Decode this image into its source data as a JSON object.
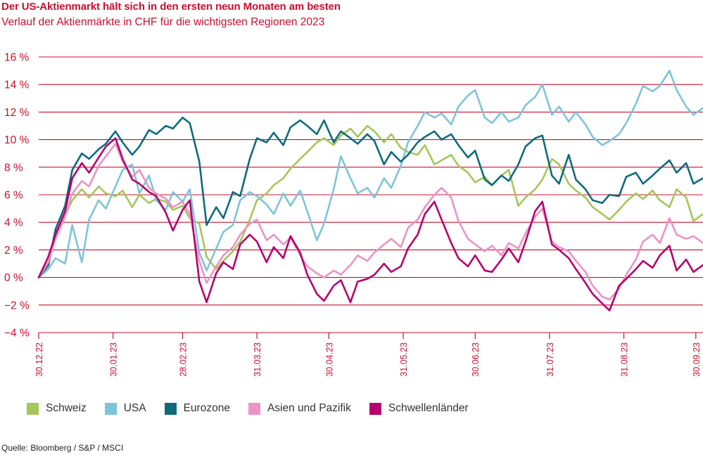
{
  "chart_data": {
    "type": "line",
    "title": "Der US-Aktienmarkt hält sich in den ersten neun Monaten am besten",
    "subtitle": "Verlauf der Aktienmärkte in CHF für die wichtigsten Regionen 2023",
    "ylim": [
      -4,
      16
    ],
    "yticks": [
      -4,
      -2,
      0,
      2,
      4,
      6,
      8,
      10,
      12,
      14,
      16
    ],
    "ytick_labels": [
      "−4 %",
      "−2 %",
      "0 %",
      "2 %",
      "4 %",
      "6 %",
      "8 %",
      "10 %",
      "12 %",
      "14 %",
      "16 %"
    ],
    "xlim": [
      "2022-12-30",
      "2023-10-03"
    ],
    "xticks": [
      "2022-12-30",
      "2023-01-30",
      "2023-02-28",
      "2023-03-31",
      "2023-04-30",
      "2023-05-31",
      "2023-06-30",
      "2023-07-31",
      "2023-08-31",
      "2023-09-30"
    ],
    "xtick_labels": [
      "30.12.22",
      "30.01.23",
      "28.02.23",
      "31.03.23",
      "30.04.23",
      "31.05.23",
      "30.06.23",
      "31.07.23",
      "31.08.23",
      "30.09.23"
    ],
    "grid": "horizontal",
    "legend_position": "bottom",
    "series": [
      {
        "name": "Schweiz",
        "color": "#a4c65a",
        "x": [
          "2022-12-30",
          "2023-01-03",
          "2023-01-06",
          "2023-01-10",
          "2023-01-13",
          "2023-01-17",
          "2023-01-20",
          "2023-01-24",
          "2023-01-27",
          "2023-01-31",
          "2023-02-03",
          "2023-02-07",
          "2023-02-10",
          "2023-02-14",
          "2023-02-17",
          "2023-02-21",
          "2023-02-24",
          "2023-02-28",
          "2023-03-03",
          "2023-03-07",
          "2023-03-10",
          "2023-03-14",
          "2023-03-17",
          "2023-03-21",
          "2023-03-24",
          "2023-03-28",
          "2023-03-31",
          "2023-04-04",
          "2023-04-07",
          "2023-04-11",
          "2023-04-14",
          "2023-04-18",
          "2023-04-21",
          "2023-04-25",
          "2023-04-28",
          "2023-05-02",
          "2023-05-05",
          "2023-05-09",
          "2023-05-12",
          "2023-05-16",
          "2023-05-19",
          "2023-05-23",
          "2023-05-26",
          "2023-05-30",
          "2023-06-02",
          "2023-06-06",
          "2023-06-09",
          "2023-06-13",
          "2023-06-16",
          "2023-06-20",
          "2023-06-23",
          "2023-06-27",
          "2023-06-30",
          "2023-07-04",
          "2023-07-07",
          "2023-07-11",
          "2023-07-14",
          "2023-07-18",
          "2023-07-21",
          "2023-07-25",
          "2023-07-28",
          "2023-08-01",
          "2023-08-04",
          "2023-08-08",
          "2023-08-11",
          "2023-08-15",
          "2023-08-18",
          "2023-08-22",
          "2023-08-25",
          "2023-08-29",
          "2023-09-01",
          "2023-09-05",
          "2023-09-08",
          "2023-09-12",
          "2023-09-15",
          "2023-09-19",
          "2023-09-22",
          "2023-09-26",
          "2023-09-29",
          "2023-10-03"
        ],
        "y": [
          0.0,
          0.8,
          3.2,
          4.5,
          5.6,
          6.4,
          5.8,
          6.6,
          6.1,
          5.9,
          6.3,
          5.1,
          6.0,
          5.4,
          5.7,
          5.5,
          4.9,
          5.2,
          4.3,
          3.9,
          1.5,
          0.6,
          1.2,
          1.9,
          2.6,
          4.2,
          5.6,
          6.1,
          6.7,
          7.2,
          7.9,
          8.6,
          9.1,
          9.8,
          10.1,
          9.6,
          10.3,
          10.8,
          10.2,
          11.0,
          10.6,
          9.8,
          10.4,
          9.4,
          9.1,
          8.9,
          9.6,
          8.2,
          8.5,
          8.9,
          8.1,
          7.6,
          6.9,
          7.3,
          6.7,
          7.4,
          7.8,
          5.2,
          5.8,
          6.4,
          7.1,
          8.6,
          8.2,
          6.8,
          6.3,
          5.8,
          5.1,
          4.6,
          4.2,
          4.9,
          5.5,
          6.1,
          5.7,
          6.3,
          5.6,
          5.1,
          6.4,
          5.8,
          4.1,
          4.6
        ]
      },
      {
        "name": "USA",
        "color": "#7ec4d8",
        "x": [
          "2022-12-30",
          "2023-01-03",
          "2023-01-06",
          "2023-01-10",
          "2023-01-13",
          "2023-01-17",
          "2023-01-20",
          "2023-01-24",
          "2023-01-27",
          "2023-01-31",
          "2023-02-03",
          "2023-02-07",
          "2023-02-10",
          "2023-02-14",
          "2023-02-17",
          "2023-02-21",
          "2023-02-24",
          "2023-02-28",
          "2023-03-03",
          "2023-03-07",
          "2023-03-10",
          "2023-03-14",
          "2023-03-17",
          "2023-03-21",
          "2023-03-24",
          "2023-03-28",
          "2023-03-31",
          "2023-04-04",
          "2023-04-07",
          "2023-04-11",
          "2023-04-14",
          "2023-04-18",
          "2023-04-21",
          "2023-04-25",
          "2023-04-28",
          "2023-05-02",
          "2023-05-05",
          "2023-05-09",
          "2023-05-12",
          "2023-05-16",
          "2023-05-19",
          "2023-05-23",
          "2023-05-26",
          "2023-05-30",
          "2023-06-02",
          "2023-06-06",
          "2023-06-09",
          "2023-06-13",
          "2023-06-16",
          "2023-06-20",
          "2023-06-23",
          "2023-06-27",
          "2023-06-30",
          "2023-07-04",
          "2023-07-07",
          "2023-07-11",
          "2023-07-14",
          "2023-07-18",
          "2023-07-21",
          "2023-07-25",
          "2023-07-28",
          "2023-08-01",
          "2023-08-04",
          "2023-08-08",
          "2023-08-11",
          "2023-08-15",
          "2023-08-18",
          "2023-08-22",
          "2023-08-25",
          "2023-08-29",
          "2023-09-01",
          "2023-09-05",
          "2023-09-08",
          "2023-09-12",
          "2023-09-15",
          "2023-09-19",
          "2023-09-22",
          "2023-09-26",
          "2023-09-29",
          "2023-10-03"
        ],
        "y": [
          0.0,
          0.6,
          1.4,
          1.0,
          3.8,
          1.1,
          4.2,
          5.6,
          5.0,
          6.6,
          7.8,
          8.2,
          6.1,
          7.4,
          5.6,
          4.9,
          6.2,
          5.5,
          6.4,
          1.8,
          0.5,
          2.1,
          3.3,
          3.8,
          5.6,
          6.2,
          5.9,
          5.3,
          4.6,
          6.1,
          5.2,
          6.3,
          4.8,
          2.7,
          3.9,
          6.4,
          8.8,
          7.2,
          6.1,
          6.5,
          5.8,
          7.2,
          6.5,
          8.1,
          9.8,
          11.0,
          12.0,
          11.6,
          11.9,
          11.1,
          12.4,
          13.2,
          13.6,
          11.6,
          11.2,
          12.0,
          11.3,
          11.6,
          12.5,
          13.1,
          14.0,
          11.8,
          12.4,
          11.3,
          12.0,
          11.1,
          10.2,
          9.6,
          9.9,
          10.4,
          11.2,
          12.6,
          13.9,
          13.5,
          13.9,
          15.0,
          13.6,
          12.4,
          11.8,
          12.3
        ]
      },
      {
        "name": "Eurozone",
        "color": "#0e6b7c",
        "x": [
          "2022-12-30",
          "2023-01-03",
          "2023-01-06",
          "2023-01-10",
          "2023-01-13",
          "2023-01-17",
          "2023-01-20",
          "2023-01-24",
          "2023-01-27",
          "2023-01-31",
          "2023-02-03",
          "2023-02-07",
          "2023-02-10",
          "2023-02-14",
          "2023-02-17",
          "2023-02-21",
          "2023-02-24",
          "2023-02-28",
          "2023-03-03",
          "2023-03-07",
          "2023-03-10",
          "2023-03-14",
          "2023-03-17",
          "2023-03-21",
          "2023-03-24",
          "2023-03-28",
          "2023-03-31",
          "2023-04-04",
          "2023-04-07",
          "2023-04-11",
          "2023-04-14",
          "2023-04-18",
          "2023-04-21",
          "2023-04-25",
          "2023-04-28",
          "2023-05-02",
          "2023-05-05",
          "2023-05-09",
          "2023-05-12",
          "2023-05-16",
          "2023-05-19",
          "2023-05-23",
          "2023-05-26",
          "2023-05-30",
          "2023-06-02",
          "2023-06-06",
          "2023-06-09",
          "2023-06-13",
          "2023-06-16",
          "2023-06-20",
          "2023-06-23",
          "2023-06-27",
          "2023-06-30",
          "2023-07-04",
          "2023-07-07",
          "2023-07-11",
          "2023-07-14",
          "2023-07-18",
          "2023-07-21",
          "2023-07-25",
          "2023-07-28",
          "2023-08-01",
          "2023-08-04",
          "2023-08-08",
          "2023-08-11",
          "2023-08-15",
          "2023-08-18",
          "2023-08-22",
          "2023-08-25",
          "2023-08-29",
          "2023-09-01",
          "2023-09-05",
          "2023-09-08",
          "2023-09-12",
          "2023-09-15",
          "2023-09-19",
          "2023-09-22",
          "2023-09-26",
          "2023-09-29",
          "2023-10-03"
        ],
        "y": [
          0.0,
          0.9,
          3.5,
          5.2,
          7.8,
          9.0,
          8.6,
          9.3,
          9.7,
          10.6,
          9.8,
          8.9,
          9.5,
          10.7,
          10.4,
          11.0,
          10.8,
          11.6,
          11.2,
          8.4,
          3.8,
          5.1,
          4.3,
          6.2,
          5.9,
          8.6,
          10.1,
          9.8,
          10.5,
          9.6,
          10.9,
          11.4,
          11.0,
          10.4,
          11.4,
          9.8,
          10.6,
          10.1,
          9.7,
          10.4,
          9.9,
          8.2,
          9.1,
          8.4,
          8.9,
          9.8,
          10.2,
          10.6,
          10.0,
          10.4,
          9.6,
          8.7,
          9.2,
          7.1,
          6.7,
          7.4,
          7.0,
          8.2,
          9.5,
          10.1,
          10.3,
          7.4,
          6.8,
          8.9,
          7.1,
          6.4,
          5.6,
          5.4,
          6.0,
          5.9,
          7.3,
          7.6,
          6.8,
          7.4,
          7.9,
          8.5,
          7.6,
          8.3,
          6.8,
          7.2
        ]
      },
      {
        "name": "Asien und Pazifik",
        "color": "#ec93c4",
        "x": [
          "2022-12-30",
          "2023-01-03",
          "2023-01-06",
          "2023-01-10",
          "2023-01-13",
          "2023-01-17",
          "2023-01-20",
          "2023-01-24",
          "2023-01-27",
          "2023-01-31",
          "2023-02-03",
          "2023-02-07",
          "2023-02-10",
          "2023-02-14",
          "2023-02-17",
          "2023-02-21",
          "2023-02-24",
          "2023-02-28",
          "2023-03-03",
          "2023-03-07",
          "2023-03-10",
          "2023-03-14",
          "2023-03-17",
          "2023-03-21",
          "2023-03-24",
          "2023-03-28",
          "2023-03-31",
          "2023-04-04",
          "2023-04-07",
          "2023-04-11",
          "2023-04-14",
          "2023-04-18",
          "2023-04-21",
          "2023-04-25",
          "2023-04-28",
          "2023-05-02",
          "2023-05-05",
          "2023-05-09",
          "2023-05-12",
          "2023-05-16",
          "2023-05-19",
          "2023-05-23",
          "2023-05-26",
          "2023-05-30",
          "2023-06-02",
          "2023-06-06",
          "2023-06-09",
          "2023-06-13",
          "2023-06-16",
          "2023-06-20",
          "2023-06-23",
          "2023-06-27",
          "2023-06-30",
          "2023-07-04",
          "2023-07-07",
          "2023-07-11",
          "2023-07-14",
          "2023-07-18",
          "2023-07-21",
          "2023-07-25",
          "2023-07-28",
          "2023-08-01",
          "2023-08-04",
          "2023-08-08",
          "2023-08-11",
          "2023-08-15",
          "2023-08-18",
          "2023-08-22",
          "2023-08-25",
          "2023-08-29",
          "2023-09-01",
          "2023-09-05",
          "2023-09-08",
          "2023-09-12",
          "2023-09-15",
          "2023-09-19",
          "2023-09-22",
          "2023-09-26",
          "2023-09-29",
          "2023-10-03"
        ],
        "y": [
          0.0,
          1.1,
          2.8,
          4.4,
          6.1,
          7.0,
          6.6,
          8.1,
          8.8,
          9.7,
          8.4,
          7.3,
          7.8,
          6.5,
          6.1,
          5.7,
          5.1,
          5.5,
          4.6,
          1.2,
          -0.4,
          0.8,
          1.6,
          2.2,
          3.1,
          3.9,
          4.2,
          2.7,
          3.1,
          2.4,
          2.9,
          1.6,
          0.8,
          0.3,
          0.0,
          0.5,
          0.2,
          0.9,
          1.6,
          1.2,
          1.8,
          2.4,
          2.8,
          2.2,
          3.6,
          4.2,
          5.1,
          6.0,
          6.5,
          5.8,
          4.1,
          2.8,
          2.4,
          1.9,
          2.3,
          1.6,
          2.5,
          2.1,
          3.2,
          4.4,
          5.0,
          2.6,
          2.2,
          1.9,
          1.2,
          0.4,
          -0.6,
          -1.4,
          -1.6,
          -0.8,
          0.2,
          1.3,
          2.6,
          3.1,
          2.5,
          4.3,
          3.1,
          2.8,
          3.0,
          2.5
        ]
      },
      {
        "name": "Schwellenländer",
        "color": "#b5006e",
        "x": [
          "2022-12-30",
          "2023-01-03",
          "2023-01-06",
          "2023-01-10",
          "2023-01-13",
          "2023-01-17",
          "2023-01-20",
          "2023-01-24",
          "2023-01-27",
          "2023-01-31",
          "2023-02-03",
          "2023-02-07",
          "2023-02-10",
          "2023-02-14",
          "2023-02-17",
          "2023-02-21",
          "2023-02-24",
          "2023-02-28",
          "2023-03-03",
          "2023-03-07",
          "2023-03-10",
          "2023-03-14",
          "2023-03-17",
          "2023-03-21",
          "2023-03-24",
          "2023-03-28",
          "2023-03-31",
          "2023-04-04",
          "2023-04-07",
          "2023-04-11",
          "2023-04-14",
          "2023-04-18",
          "2023-04-21",
          "2023-04-25",
          "2023-04-28",
          "2023-05-02",
          "2023-05-05",
          "2023-05-09",
          "2023-05-12",
          "2023-05-16",
          "2023-05-19",
          "2023-05-23",
          "2023-05-26",
          "2023-05-30",
          "2023-06-02",
          "2023-06-06",
          "2023-06-09",
          "2023-06-13",
          "2023-06-16",
          "2023-06-20",
          "2023-06-23",
          "2023-06-27",
          "2023-06-30",
          "2023-07-04",
          "2023-07-07",
          "2023-07-11",
          "2023-07-14",
          "2023-07-18",
          "2023-07-21",
          "2023-07-25",
          "2023-07-28",
          "2023-08-01",
          "2023-08-04",
          "2023-08-08",
          "2023-08-11",
          "2023-08-15",
          "2023-08-18",
          "2023-08-22",
          "2023-08-25",
          "2023-08-29",
          "2023-09-01",
          "2023-09-05",
          "2023-09-08",
          "2023-09-12",
          "2023-09-15",
          "2023-09-19",
          "2023-09-22",
          "2023-09-26",
          "2023-09-29",
          "2023-10-03"
        ],
        "y": [
          0.0,
          1.5,
          3.1,
          4.8,
          7.2,
          8.3,
          7.6,
          8.7,
          9.5,
          10.1,
          8.6,
          7.1,
          6.8,
          6.2,
          5.9,
          4.7,
          3.4,
          4.9,
          5.6,
          -0.3,
          -1.8,
          0.3,
          1.1,
          0.6,
          2.4,
          3.1,
          2.6,
          1.1,
          2.2,
          1.4,
          3.0,
          1.8,
          0.2,
          -1.2,
          -1.7,
          -0.6,
          -0.2,
          -1.8,
          -0.3,
          -0.1,
          0.2,
          1.0,
          0.4,
          0.8,
          2.1,
          3.1,
          4.6,
          5.5,
          4.2,
          2.5,
          1.4,
          0.8,
          1.6,
          0.5,
          0.4,
          1.3,
          2.1,
          1.1,
          2.6,
          4.8,
          5.5,
          2.4,
          2.0,
          1.4,
          0.6,
          -0.4,
          -1.2,
          -1.9,
          -2.4,
          -0.6,
          -0.1,
          0.6,
          1.2,
          0.7,
          1.6,
          2.3,
          0.5,
          1.3,
          0.4,
          0.9
        ]
      }
    ],
    "source": "Quelle: Bloomberg / S&P / MSCI"
  }
}
